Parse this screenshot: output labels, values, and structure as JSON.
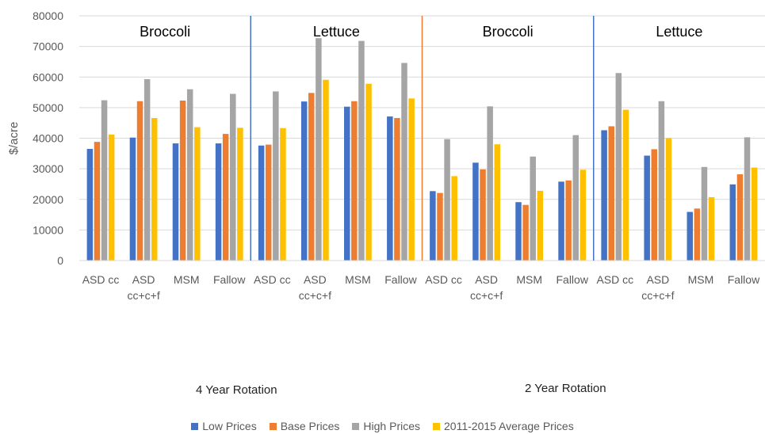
{
  "chart_data": {
    "type": "bar",
    "title": "",
    "xlabel": "",
    "ylabel": "$/acre",
    "ylim": [
      0,
      80000
    ],
    "yticks": [
      0,
      10000,
      20000,
      30000,
      40000,
      50000,
      60000,
      70000,
      80000
    ],
    "grid": true,
    "legend_position": "bottom",
    "category_labels": [
      [
        "ASD cc"
      ],
      [
        "ASD",
        "cc+c+f"
      ],
      [
        "MSM"
      ],
      [
        "Fallow"
      ],
      [
        "ASD cc"
      ],
      [
        "ASD",
        "cc+c+f"
      ],
      [
        "MSM"
      ],
      [
        "Fallow"
      ],
      [
        "ASD cc"
      ],
      [
        "ASD",
        "cc+c+f"
      ],
      [
        "MSM"
      ],
      [
        "Fallow"
      ],
      [
        "ASD cc"
      ],
      [
        "ASD",
        "cc+c+f"
      ],
      [
        "MSM"
      ],
      [
        "Fallow"
      ]
    ],
    "crop_groups": [
      "Broccoli",
      "Lettuce",
      "Broccoli",
      "Lettuce"
    ],
    "rotation_labels": [
      "4 Year Rotation",
      "2 Year Rotation"
    ],
    "series": [
      {
        "name": "Low Prices",
        "color": "#4472C4",
        "values": [
          36500,
          40200,
          38300,
          38300,
          37600,
          52000,
          50300,
          47100,
          22700,
          32000,
          19100,
          25800,
          42600,
          34300,
          15900,
          24900
        ]
      },
      {
        "name": "Base Prices",
        "color": "#ED7D31",
        "values": [
          38800,
          52100,
          52300,
          41400,
          37900,
          54800,
          52100,
          46600,
          22100,
          29800,
          18200,
          26200,
          43900,
          36400,
          17000,
          28200
        ]
      },
      {
        "name": "High Prices",
        "color": "#A5A5A5",
        "values": [
          52400,
          59300,
          56000,
          54500,
          55300,
          72700,
          71800,
          64600,
          39700,
          50400,
          34000,
          41000,
          61300,
          52100,
          30600,
          40300
        ]
      },
      {
        "name": "2011-2015 Average Prices",
        "color": "#FFC000",
        "values": [
          41200,
          46600,
          43600,
          43400,
          43300,
          59100,
          57800,
          53000,
          27600,
          38000,
          22800,
          29700,
          49300,
          40000,
          20700,
          30400
        ]
      }
    ],
    "separator_colors": [
      "#4472C4",
      "#ED7D31",
      "#4472C4"
    ]
  }
}
